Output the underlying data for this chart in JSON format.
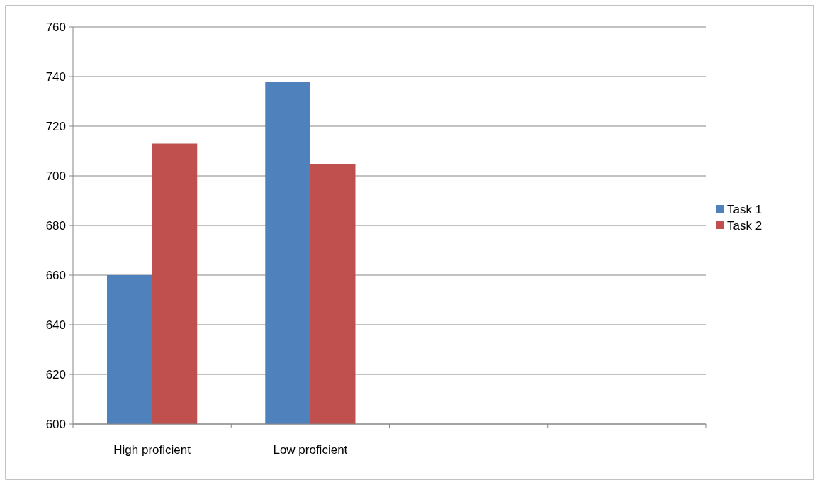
{
  "chart_data": {
    "type": "bar",
    "categories": [
      "High proficient",
      "Low proficient",
      null,
      null
    ],
    "series": [
      {
        "name": "Task 1",
        "color": "#4f81bd",
        "values": [
          660,
          738,
          null,
          null
        ]
      },
      {
        "name": "Task 2",
        "color": "#c0504d",
        "values": [
          713,
          704.6,
          null,
          null
        ]
      }
    ],
    "ylim": [
      600,
      760
    ],
    "yticks": [
      600,
      620,
      640,
      660,
      680,
      700,
      720,
      740,
      760
    ],
    "grid": "y",
    "legend": "right"
  }
}
